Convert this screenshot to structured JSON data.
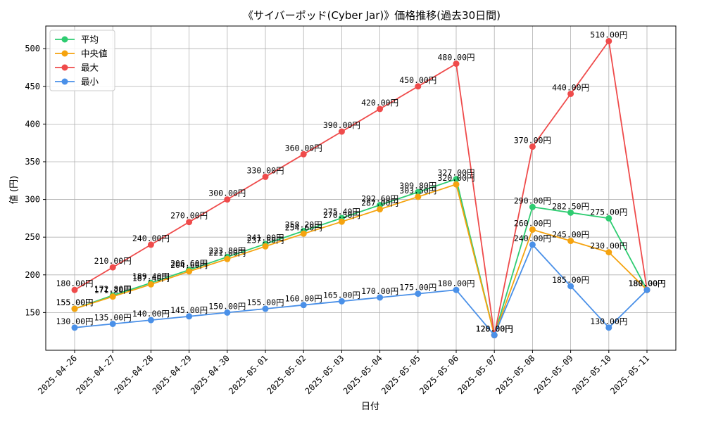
{
  "chart_data": {
    "type": "line",
    "title": "《サイバーポッド(Cyber Jar)》価格推移(過去30日間)",
    "xlabel": "日付",
    "ylabel": "値 (円)",
    "ylim": [
      100,
      530
    ],
    "yticks": [
      150,
      200,
      250,
      300,
      350,
      400,
      450,
      500
    ],
    "grid": true,
    "legend_position": "top-left",
    "value_suffix": "円",
    "x": [
      "2025-04-26",
      "2025-04-27",
      "2025-04-28",
      "2025-04-29",
      "2025-04-30",
      "2025-05-01",
      "2025-05-02",
      "2025-05-03",
      "2025-05-04",
      "2025-05-05",
      "2025-05-06",
      "2025-05-07",
      "2025-05-08",
      "2025-05-09",
      "2025-05-10",
      "2025-05-11"
    ],
    "series": [
      {
        "name": "平均",
        "color": "#2ecc71",
        "values": [
          155,
          172.8,
          189.4,
          206.6,
          223.8,
          241,
          258.2,
          275.4,
          292.6,
          309.8,
          327,
          120,
          290,
          282.5,
          275,
          180
        ]
      },
      {
        "name": "中央値",
        "color": "#f5a30f",
        "values": [
          155,
          171.2,
          187.4,
          204.6,
          221,
          237.8,
          254.6,
          270.5,
          287,
          303.5,
          320,
          120,
          260,
          245,
          230,
          180
        ]
      },
      {
        "name": "最大",
        "color": "#ef4b4b",
        "values": [
          180,
          210,
          240,
          270,
          300,
          330,
          360,
          390,
          420,
          450,
          480,
          120,
          370,
          440,
          510,
          180
        ]
      },
      {
        "name": "最小",
        "color": "#4a90e8",
        "values": [
          130,
          135,
          140,
          145,
          150,
          155,
          160,
          165,
          170,
          175,
          180,
          120,
          240,
          185,
          130,
          180
        ]
      }
    ]
  }
}
